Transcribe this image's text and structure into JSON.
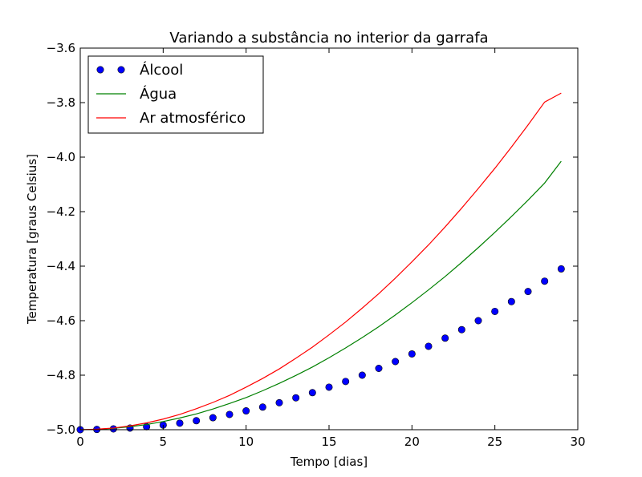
{
  "chart_data": {
    "type": "line",
    "title": "Variando a substância no interior da garrafa",
    "xlabel": "Tempo [dias]",
    "ylabel": "Temperatura [graus Celsius]",
    "xlim": [
      0,
      30
    ],
    "ylim": [
      -5.0,
      -3.6
    ],
    "xticks": [
      0,
      5,
      10,
      15,
      20,
      25,
      30
    ],
    "xtick_labels": [
      "0",
      "5",
      "10",
      "15",
      "20",
      "25",
      "30"
    ],
    "yticks": [
      -5.0,
      -4.8,
      -4.6,
      -4.4,
      -4.2,
      -4.0,
      -3.8,
      -3.6
    ],
    "ytick_labels": [
      "−5.0",
      "−4.8",
      "−4.6",
      "−4.4",
      "−4.2",
      "−4.0",
      "−3.8",
      "−3.6"
    ],
    "grid": false,
    "legend_position": "top-left",
    "x": [
      0,
      1,
      2,
      3,
      4,
      5,
      6,
      7,
      8,
      9,
      10,
      11,
      12,
      13,
      14,
      15,
      16,
      17,
      18,
      19,
      20,
      21,
      22,
      23,
      24,
      25,
      26,
      27,
      28,
      29
    ],
    "series": [
      {
        "name": "Álcool",
        "style": "markers",
        "color": "#0000ff",
        "values": [
          -5.0,
          -4.999,
          -4.997,
          -4.994,
          -4.989,
          -4.983,
          -4.976,
          -4.967,
          -4.956,
          -4.944,
          -4.931,
          -4.917,
          -4.901,
          -4.883,
          -4.864,
          -4.844,
          -4.823,
          -4.8,
          -4.775,
          -4.75,
          -4.722,
          -4.694,
          -4.664,
          -4.633,
          -4.6,
          -4.566,
          -4.53,
          -4.493,
          -4.455,
          -4.41
        ]
      },
      {
        "name": "Água",
        "style": "line",
        "color": "#008000",
        "values": [
          -5.0,
          -4.999,
          -4.995,
          -4.989,
          -4.981,
          -4.97,
          -4.957,
          -4.942,
          -4.924,
          -4.904,
          -4.882,
          -4.857,
          -4.83,
          -4.801,
          -4.77,
          -4.736,
          -4.7,
          -4.662,
          -4.622,
          -4.579,
          -4.534,
          -4.487,
          -4.438,
          -4.386,
          -4.332,
          -4.276,
          -4.218,
          -4.158,
          -4.095,
          -4.015
        ]
      },
      {
        "name": "Ar atmosférico",
        "style": "line",
        "color": "#ff0000",
        "values": [
          -5.0,
          -4.998,
          -4.994,
          -4.986,
          -4.975,
          -4.961,
          -4.944,
          -4.923,
          -4.9,
          -4.874,
          -4.844,
          -4.812,
          -4.777,
          -4.738,
          -4.697,
          -4.652,
          -4.605,
          -4.554,
          -4.501,
          -4.444,
          -4.384,
          -4.322,
          -4.256,
          -4.187,
          -4.115,
          -4.041,
          -3.963,
          -3.882,
          -3.798,
          -3.765
        ]
      }
    ]
  }
}
